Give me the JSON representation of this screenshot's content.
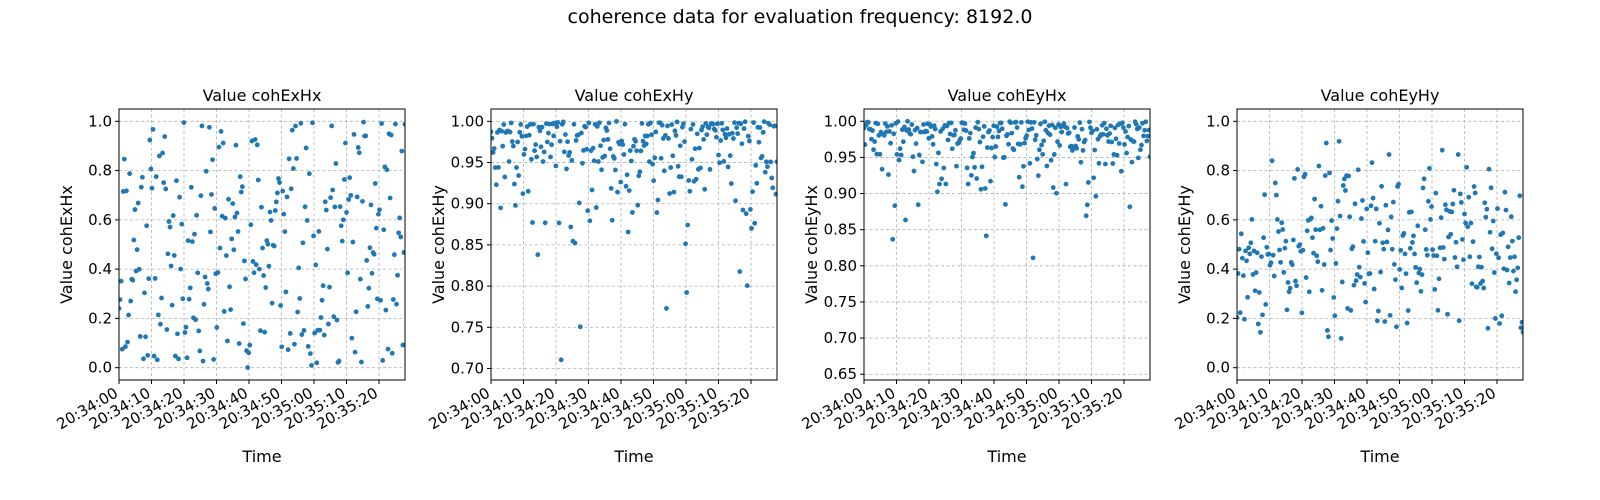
{
  "suptitle": "coherence data for evaluation frequency: 8192.0",
  "chart_data": [
    {
      "type": "scatter",
      "title": "Value cohExHx",
      "xlabel": "Time",
      "ylabel": "Value cohExHx",
      "x_tick_labels": [
        "20:34:00",
        "20:34:10",
        "20:34:20",
        "20:34:30",
        "20:34:40",
        "20:34:50",
        "20:35:00",
        "20:35:10",
        "20:35:20"
      ],
      "x_range_seconds_from_tick0": [
        0,
        88
      ],
      "ylim": [
        -0.05,
        1.05
      ],
      "y_ticks": [
        "0.0",
        "0.2",
        "0.4",
        "0.6",
        "0.8",
        "1.0"
      ],
      "y_tick_values": [
        0.0,
        0.2,
        0.4,
        0.6,
        0.8,
        1.0
      ],
      "grid": true,
      "color": "#1f77b4",
      "seed": 11,
      "n_points": 270,
      "dist": "uniform",
      "lo": 0.0,
      "hi": 1.0
    },
    {
      "type": "scatter",
      "title": "Value cohExHy",
      "xlabel": "Time",
      "ylabel": "Value cohExHy",
      "x_tick_labels": [
        "20:34:00",
        "20:34:10",
        "20:34:20",
        "20:34:30",
        "20:34:40",
        "20:34:50",
        "20:35:00",
        "20:35:10",
        "20:35:20"
      ],
      "x_range_seconds_from_tick0": [
        0,
        88
      ],
      "ylim": [
        0.686,
        1.015
      ],
      "y_ticks": [
        "0.70",
        "0.75",
        "0.80",
        "0.85",
        "0.90",
        "0.95",
        "1.00"
      ],
      "y_tick_values": [
        0.7,
        0.75,
        0.8,
        0.85,
        0.9,
        0.95,
        1.0
      ],
      "grid": true,
      "color": "#1f77b4",
      "seed": 23,
      "n_points": 270,
      "dist": "high",
      "lo": 0.697,
      "hi": 1.0,
      "scale": 0.045
    },
    {
      "type": "scatter",
      "title": "Value cohEyHx",
      "xlabel": "Time",
      "ylabel": "Value cohEyHx",
      "x_tick_labels": [
        "20:34:00",
        "20:34:10",
        "20:34:20",
        "20:34:30",
        "20:34:40",
        "20:34:50",
        "20:35:00",
        "20:35:10",
        "20:35:20"
      ],
      "x_range_seconds_from_tick0": [
        0,
        88
      ],
      "ylim": [
        0.642,
        1.017
      ],
      "y_ticks": [
        "0.65",
        "0.70",
        "0.75",
        "0.80",
        "0.85",
        "0.90",
        "0.95",
        "1.00"
      ],
      "y_tick_values": [
        0.65,
        0.7,
        0.75,
        0.8,
        0.85,
        0.9,
        0.95,
        1.0
      ],
      "grid": true,
      "color": "#1f77b4",
      "seed": 37,
      "n_points": 270,
      "dist": "high",
      "lo": 0.657,
      "hi": 1.0,
      "scale": 0.032
    },
    {
      "type": "scatter",
      "title": "Value cohEyHy",
      "xlabel": "Time",
      "ylabel": "Value cohEyHy",
      "x_tick_labels": [
        "20:34:00",
        "20:34:10",
        "20:34:20",
        "20:34:30",
        "20:34:40",
        "20:34:50",
        "20:35:00",
        "20:35:10",
        "20:35:20"
      ],
      "x_range_seconds_from_tick0": [
        0,
        88
      ],
      "ylim": [
        -0.05,
        1.05
      ],
      "y_ticks": [
        "0.0",
        "0.2",
        "0.4",
        "0.6",
        "0.8",
        "1.0"
      ],
      "y_tick_values": [
        0.0,
        0.2,
        0.4,
        0.6,
        0.8,
        1.0
      ],
      "grid": true,
      "color": "#1f77b4",
      "seed": 53,
      "n_points": 270,
      "dist": "mid",
      "lo": 0.0,
      "hi": 1.0
    }
  ]
}
